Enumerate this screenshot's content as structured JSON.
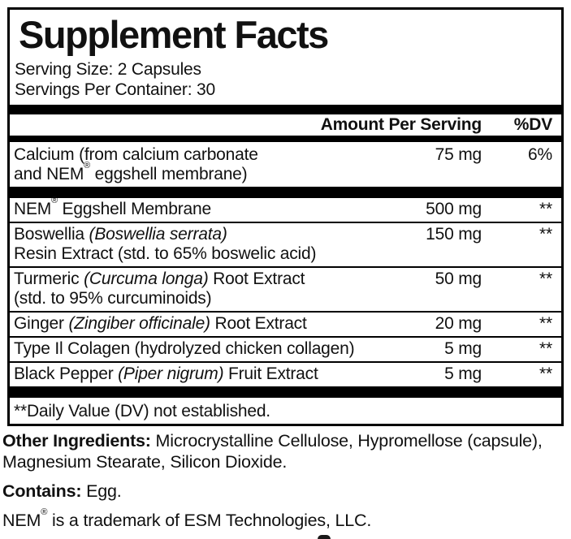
{
  "title": "Supplement Facts",
  "serving_info": {
    "serving_size": "Serving Size: 2 Capsules",
    "servings_per_container": "Servings Per Container: 30"
  },
  "table": {
    "header": {
      "amount": "Amount Per Serving",
      "dv": "%DV"
    },
    "items": [
      {
        "type": "row",
        "line1": [
          {
            "t": "Calcium (from calcium carbonate",
            "i": false
          }
        ],
        "line2": "and NEM® eggshell membrane)",
        "amount": "75 mg",
        "dv": "6%"
      },
      {
        "type": "bar"
      },
      {
        "type": "row",
        "line1": [
          {
            "t": "NEM® Eggshell Membrane",
            "i": false
          }
        ],
        "line2": null,
        "amount": "500 mg",
        "dv": "**"
      },
      {
        "type": "row",
        "line1": [
          {
            "t": "Boswellia ",
            "i": false
          },
          {
            "t": "(Boswellia serrata)",
            "i": true
          }
        ],
        "line2": "Resin Extract (std. to 65% boswelic acid)",
        "amount": "150 mg",
        "dv": "**"
      },
      {
        "type": "row",
        "line1": [
          {
            "t": "Turmeric ",
            "i": false
          },
          {
            "t": "(Curcuma longa)",
            "i": true
          },
          {
            "t": " Root Extract",
            "i": false
          }
        ],
        "line2": "(std. to 95% curcuminoids)",
        "amount": "50 mg",
        "dv": "**"
      },
      {
        "type": "row",
        "line1": [
          {
            "t": "Ginger ",
            "i": false
          },
          {
            "t": "(Zingiber officinale)",
            "i": true
          },
          {
            "t": " Root Extract",
            "i": false
          }
        ],
        "line2": null,
        "amount": "20 mg",
        "dv": "**"
      },
      {
        "type": "row",
        "line1": [
          {
            "t": "Type Il Colagen (hydrolyzed chicken collagen)",
            "i": false
          }
        ],
        "line2": null,
        "amount": "5 mg",
        "dv": "**"
      },
      {
        "type": "row",
        "line1": [
          {
            "t": "Black Pepper ",
            "i": false
          },
          {
            "t": "(Piper nigrum)",
            "i": true
          },
          {
            "t": " Fruit Extract",
            "i": false
          }
        ],
        "line2": null,
        "amount": "5 mg",
        "dv": "**"
      },
      {
        "type": "bar"
      }
    ],
    "footnote": "**Daily Value (DV) not established."
  },
  "other_ingredients": {
    "label": "Other Ingredients:",
    "text": " Microcrystalline Cellulose, Hypromellose (capsule), Magnesium Stearate, Silicon Dioxide."
  },
  "contains": {
    "label": "Contains:",
    "text": " Egg."
  },
  "trademark": "NEM® is a trademark of ESM Technologies, LLC.",
  "colors": {
    "ink": "#111111",
    "bar": "#000000",
    "background": "#ffffff"
  }
}
